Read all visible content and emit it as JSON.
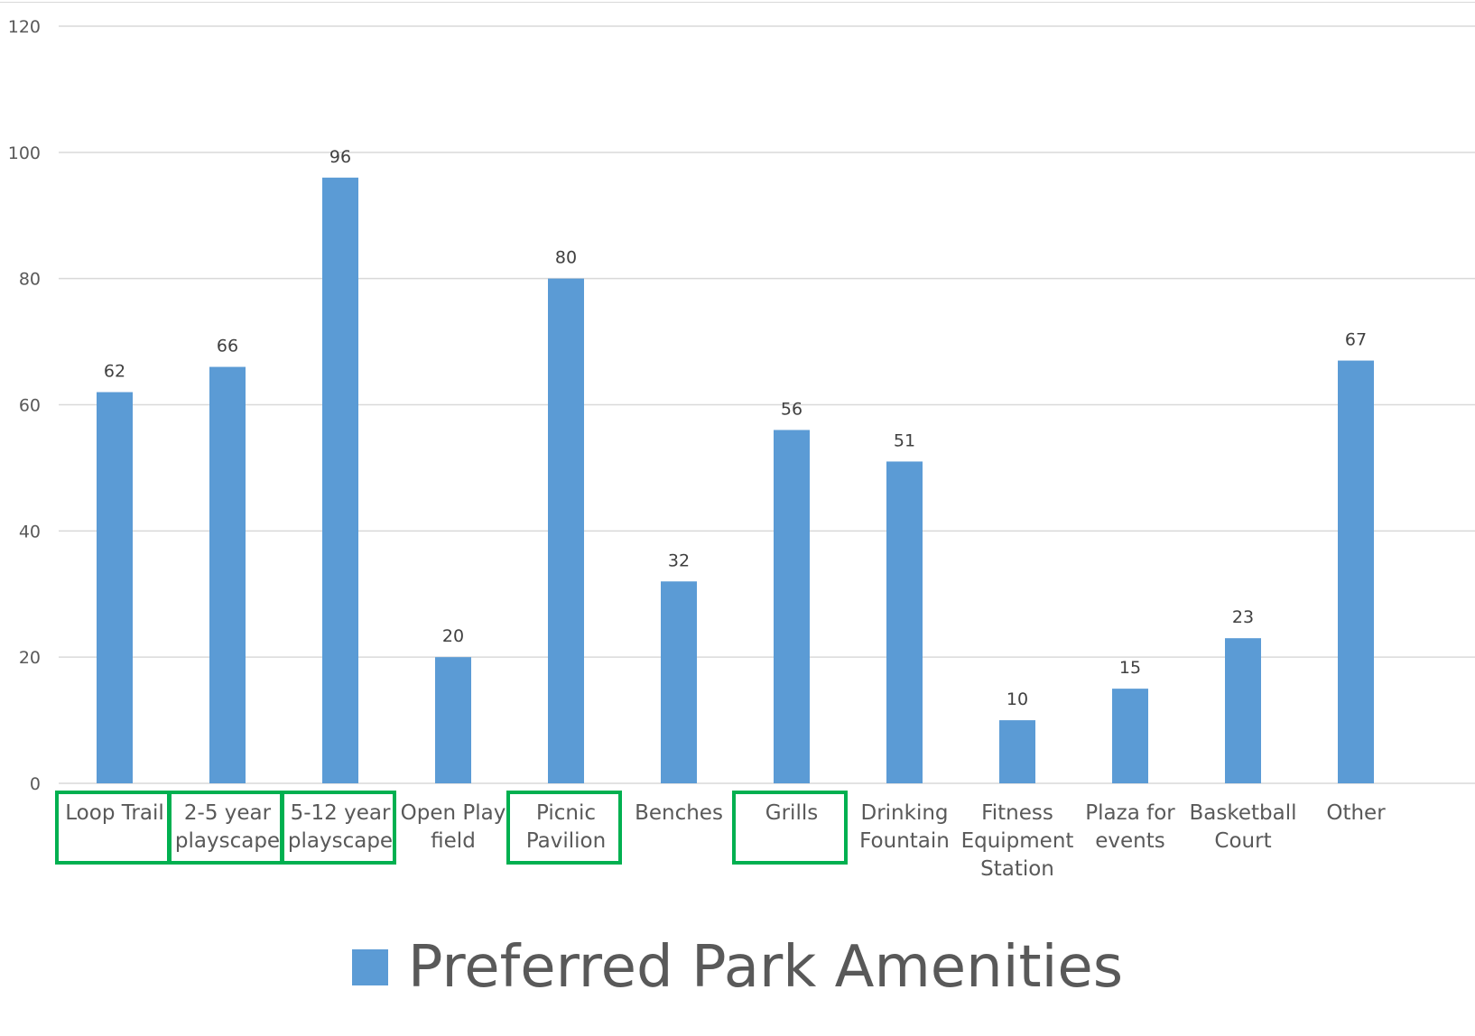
{
  "colors": {
    "bar": "#5b9bd5",
    "highlight_box": "#00b050",
    "gridline": "#d9d9d9",
    "axis_text": "#595959",
    "label_text": "#404040"
  },
  "chart_data": {
    "type": "bar",
    "title": "",
    "xlabel": "",
    "ylabel": "",
    "ylim": [
      0,
      120
    ],
    "y_ticks": [
      0,
      20,
      40,
      60,
      80,
      100,
      120
    ],
    "grid": true,
    "legend_position": "bottom",
    "categories": [
      "Loop Trail",
      "2-5 year playscape",
      "5-12 year playscape",
      "Open Play field",
      "Picnic Pavilion",
      "Benches",
      "Grills",
      "Drinking Fountain",
      "Fitness Equipment Station",
      "Plaza for events",
      "Basketball Court",
      "Other"
    ],
    "category_label_lines": [
      [
        "Loop Trail"
      ],
      [
        "2-5 year",
        "playscape"
      ],
      [
        "5-12 year",
        "playscape"
      ],
      [
        "Open Play",
        "field"
      ],
      [
        "Picnic",
        "Pavilion"
      ],
      [
        "Benches"
      ],
      [
        "Grills"
      ],
      [
        "Drinking",
        "Fountain"
      ],
      [
        "Fitness",
        "Equipment",
        "Station"
      ],
      [
        "Plaza for",
        "events"
      ],
      [
        "Basketball",
        "Court"
      ],
      [
        "Other"
      ]
    ],
    "series": [
      {
        "name": "Preferred Park Amenities",
        "values": [
          62,
          66,
          96,
          20,
          80,
          32,
          56,
          51,
          10,
          15,
          23,
          67
        ]
      }
    ],
    "data_labels": true,
    "highlighted_categories": [
      "Loop Trail",
      "2-5 year playscape",
      "5-12 year playscape",
      "Picnic Pavilion",
      "Grills"
    ]
  }
}
